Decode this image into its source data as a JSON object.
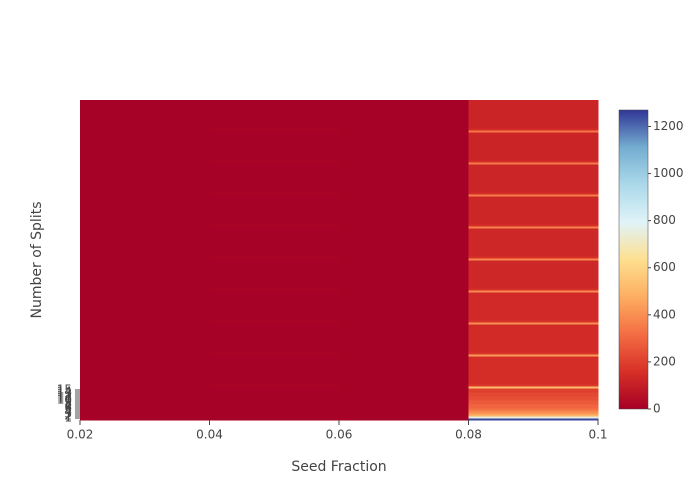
{
  "chart_data": {
    "type": "heatmap",
    "xlabel": "Seed Fraction",
    "ylabel": "Number of Splits",
    "x": [
      0.02,
      0.04,
      0.06,
      0.08
    ],
    "y": [
      0,
      1,
      2,
      3,
      4,
      5,
      6,
      8,
      10,
      12,
      14,
      16,
      17,
      18,
      32,
      33,
      34,
      48,
      49,
      50,
      64,
      65,
      66,
      80,
      81,
      82,
      96,
      97,
      98,
      112,
      113,
      114,
      128,
      129,
      130,
      144,
      145,
      146
    ],
    "z": [
      [
        3,
        3,
        3,
        1250
      ],
      [
        3,
        3,
        3,
        750
      ],
      [
        3,
        3,
        3,
        500
      ],
      [
        3,
        3,
        3,
        420
      ],
      [
        3,
        3,
        3,
        380
      ],
      [
        3,
        3,
        3,
        330
      ],
      [
        3,
        3,
        3,
        300
      ],
      [
        3,
        3,
        3,
        270
      ],
      [
        3,
        3,
        3,
        240
      ],
      [
        3,
        3,
        3,
        220
      ],
      [
        3,
        3,
        3,
        200
      ],
      [
        3,
        12,
        3,
        520
      ],
      [
        3,
        12,
        3,
        180
      ],
      [
        3,
        3,
        3,
        150
      ],
      [
        3,
        12,
        3,
        430
      ],
      [
        3,
        12,
        3,
        170
      ],
      [
        3,
        3,
        3,
        140
      ],
      [
        3,
        12,
        3,
        400
      ],
      [
        3,
        12,
        3,
        165
      ],
      [
        3,
        3,
        3,
        135
      ],
      [
        3,
        12,
        3,
        390
      ],
      [
        3,
        12,
        3,
        160
      ],
      [
        3,
        3,
        3,
        130
      ],
      [
        3,
        12,
        3,
        380
      ],
      [
        3,
        12,
        3,
        160
      ],
      [
        3,
        3,
        3,
        128
      ],
      [
        3,
        12,
        3,
        370
      ],
      [
        3,
        12,
        3,
        155
      ],
      [
        3,
        3,
        3,
        125
      ],
      [
        3,
        12,
        3,
        360
      ],
      [
        3,
        12,
        3,
        150
      ],
      [
        3,
        3,
        3,
        122
      ],
      [
        3,
        12,
        3,
        350
      ],
      [
        3,
        12,
        3,
        150
      ],
      [
        3,
        3,
        3,
        120
      ],
      [
        3,
        12,
        3,
        340
      ],
      [
        3,
        12,
        3,
        145
      ],
      [
        3,
        3,
        3,
        118
      ]
    ],
    "colorscale": [
      "#a50026",
      "#d73027",
      "#f46d43",
      "#fdae61",
      "#fee090",
      "#e0f3f8",
      "#abd9e9",
      "#74add1",
      "#313695"
    ],
    "zlim": [
      0,
      1270
    ],
    "zticks": [
      0,
      200,
      400,
      600,
      800,
      1000,
      1200
    ],
    "xlim": [
      0.02,
      0.1
    ],
    "xticks": [
      0.02,
      0.04,
      0.06,
      0.08,
      0.1
    ],
    "ylim": [
      0,
      160
    ],
    "yticks": [
      1,
      2,
      3,
      4,
      5,
      6,
      7,
      8,
      9,
      10,
      11,
      12,
      13,
      14,
      15
    ]
  }
}
